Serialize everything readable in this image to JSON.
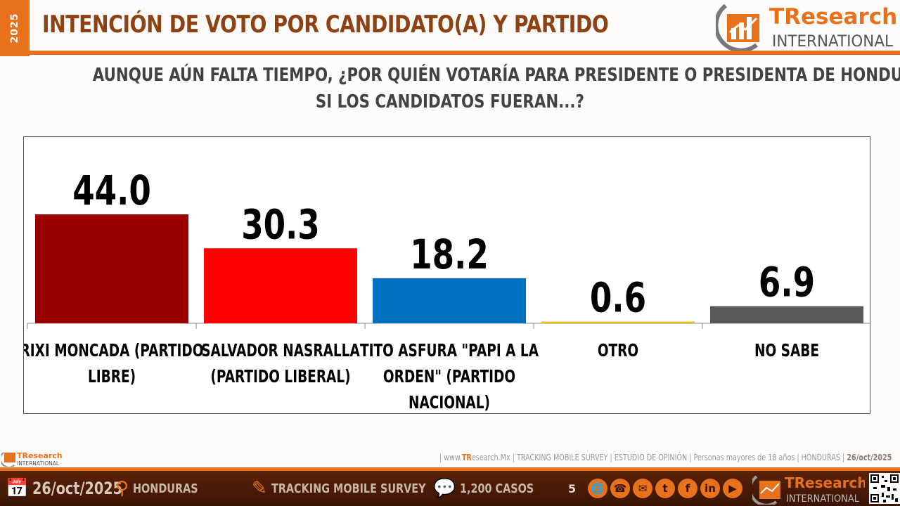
{
  "header": {
    "year": "2025",
    "title": "INTENCIÓN DE VOTO POR CANDIDATO(A) Y PARTIDO",
    "logo_brand": "TResearch",
    "logo_sub": "INTERNATIONAL"
  },
  "question": {
    "line1": "AUNQUE AÚN FALTA TIEMPO, ¿POR QUIÉN VOTARÍA PARA PRESIDENTE O PRESIDENTA DE HONDURAS",
    "line2": "SI LOS CANDIDATOS FUERAN...?"
  },
  "chart_data": {
    "type": "bar",
    "categories": [
      [
        "RIXI MONCADA (PARTIDO",
        "LIBRE)"
      ],
      [
        "SALVADOR NASRALLA",
        "(PARTIDO LIBERAL)"
      ],
      [
        "TITO ASFURA \"PAPI A LA",
        "ORDEN\" (PARTIDO",
        "NACIONAL)"
      ],
      [
        "OTRO"
      ],
      [
        "NO SABE"
      ]
    ],
    "values": [
      44.0,
      30.3,
      18.2,
      0.6,
      6.9
    ],
    "value_labels": [
      "44.0",
      "30.3",
      "18.2",
      "0.6",
      "6.9"
    ],
    "colors": [
      "#9b0000",
      "#ff0000",
      "#0070c0",
      "#e3c41c",
      "#595959"
    ],
    "ylim": [
      0,
      50
    ],
    "grid": false,
    "legend": "none"
  },
  "footer": {
    "source_site_pre": "| www.",
    "source_site_tr": "TR",
    "source_site_post": "esearch.Mx |",
    "source_rest": " TRACKING MOBILE SURVEY |  ESTUDIO DE OPINIÓN  | Personas mayores de 18 años | HONDURAS |",
    "source_date": "26/oct/2025",
    "small_logo_brand": "TResearch",
    "small_logo_sub": "INTERNATIONAL",
    "date": "26/oct/2025",
    "location": "HONDURAS",
    "survey": "TRACKING MOBILE SURVEY",
    "cases": "1,200 CASOS",
    "page": "5"
  },
  "icons": {
    "calendar": "calendar-clock-icon",
    "location": "map-pin-icon",
    "survey": "survey-chart-icon",
    "cases": "speech-bubble-icon",
    "social": [
      "globe-icon",
      "phone-icon",
      "mail-icon",
      "twitter-icon",
      "facebook-icon",
      "linkedin-icon",
      "youtube-icon"
    ]
  }
}
